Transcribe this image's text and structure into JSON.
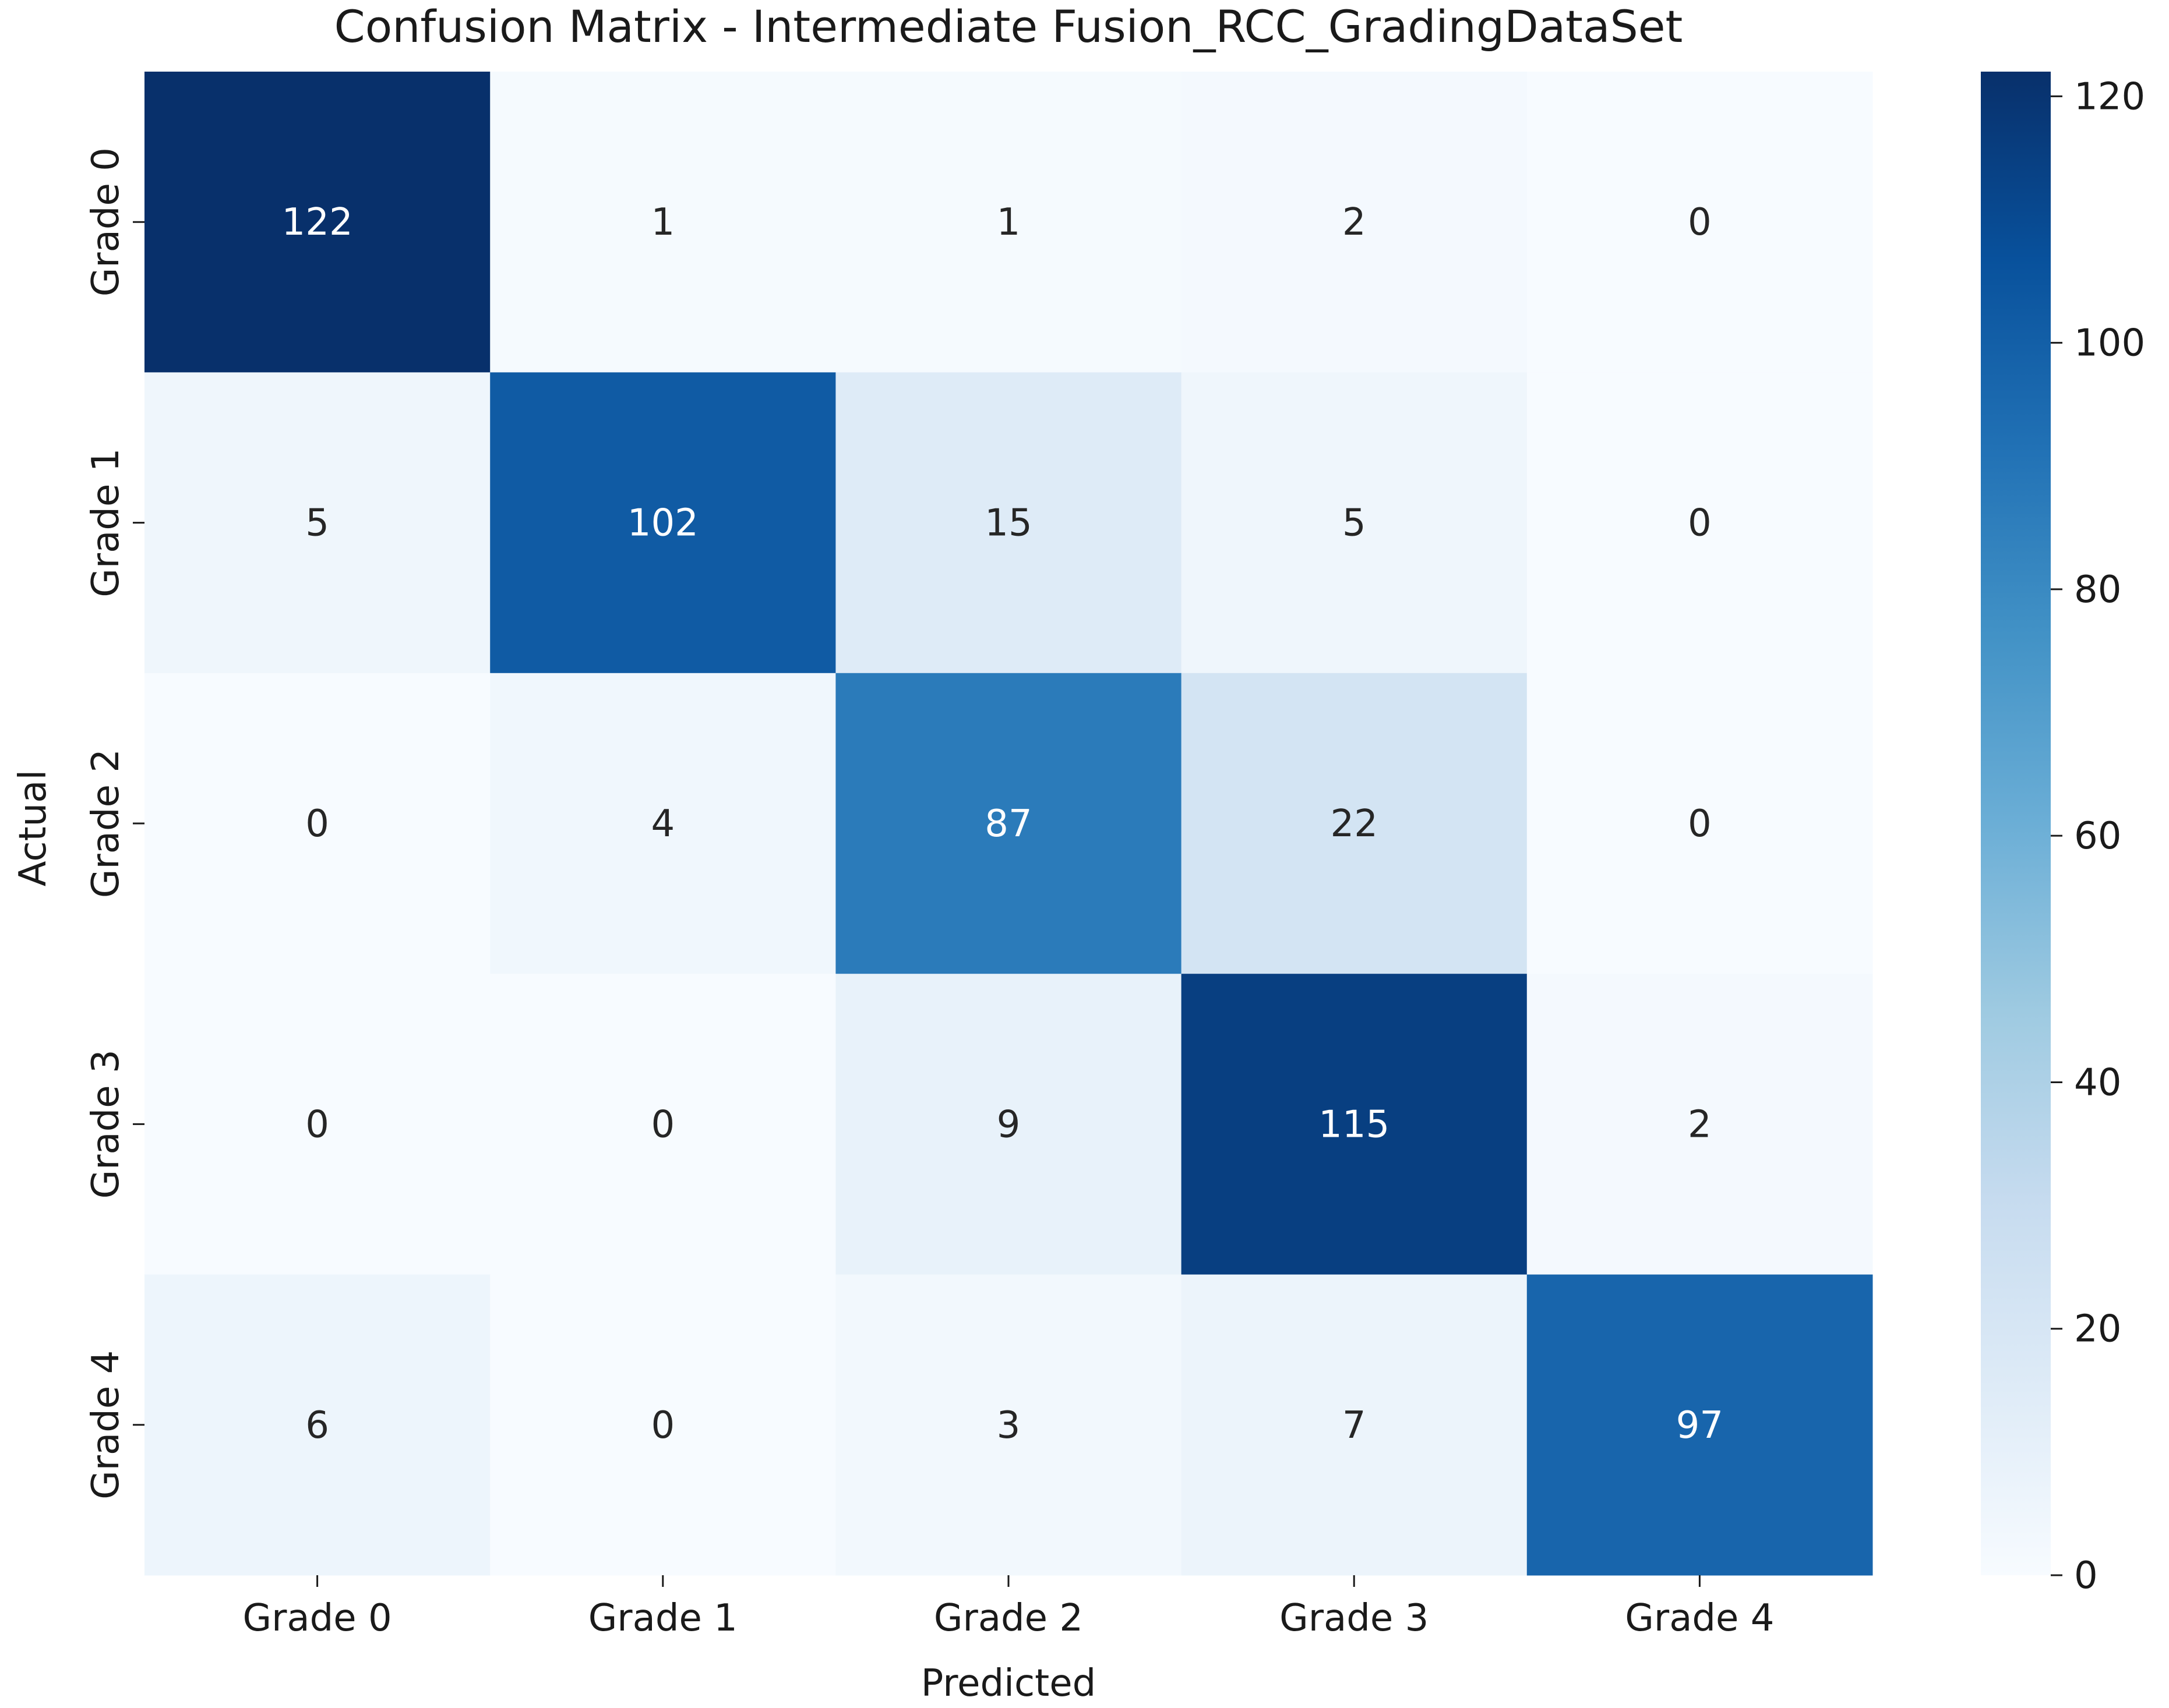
{
  "chart_data": {
    "type": "heatmap",
    "title": "Confusion Matrix - Intermediate Fusion_RCC_GradingDataSet",
    "xlabel": "Predicted",
    "ylabel": "Actual",
    "x_categories": [
      "Grade 0",
      "Grade 1",
      "Grade 2",
      "Grade 3",
      "Grade 4"
    ],
    "y_categories": [
      "Grade 0",
      "Grade 1",
      "Grade 2",
      "Grade 3",
      "Grade 4"
    ],
    "values": [
      [
        122,
        1,
        1,
        2,
        0
      ],
      [
        5,
        102,
        15,
        5,
        0
      ],
      [
        0,
        4,
        87,
        22,
        0
      ],
      [
        0,
        0,
        9,
        115,
        2
      ],
      [
        6,
        0,
        3,
        7,
        97
      ]
    ],
    "colorscale": "Blues",
    "vmin": 0,
    "vmax": 122,
    "colorbar_ticks": [
      0,
      20,
      40,
      60,
      80,
      100,
      120
    ]
  }
}
